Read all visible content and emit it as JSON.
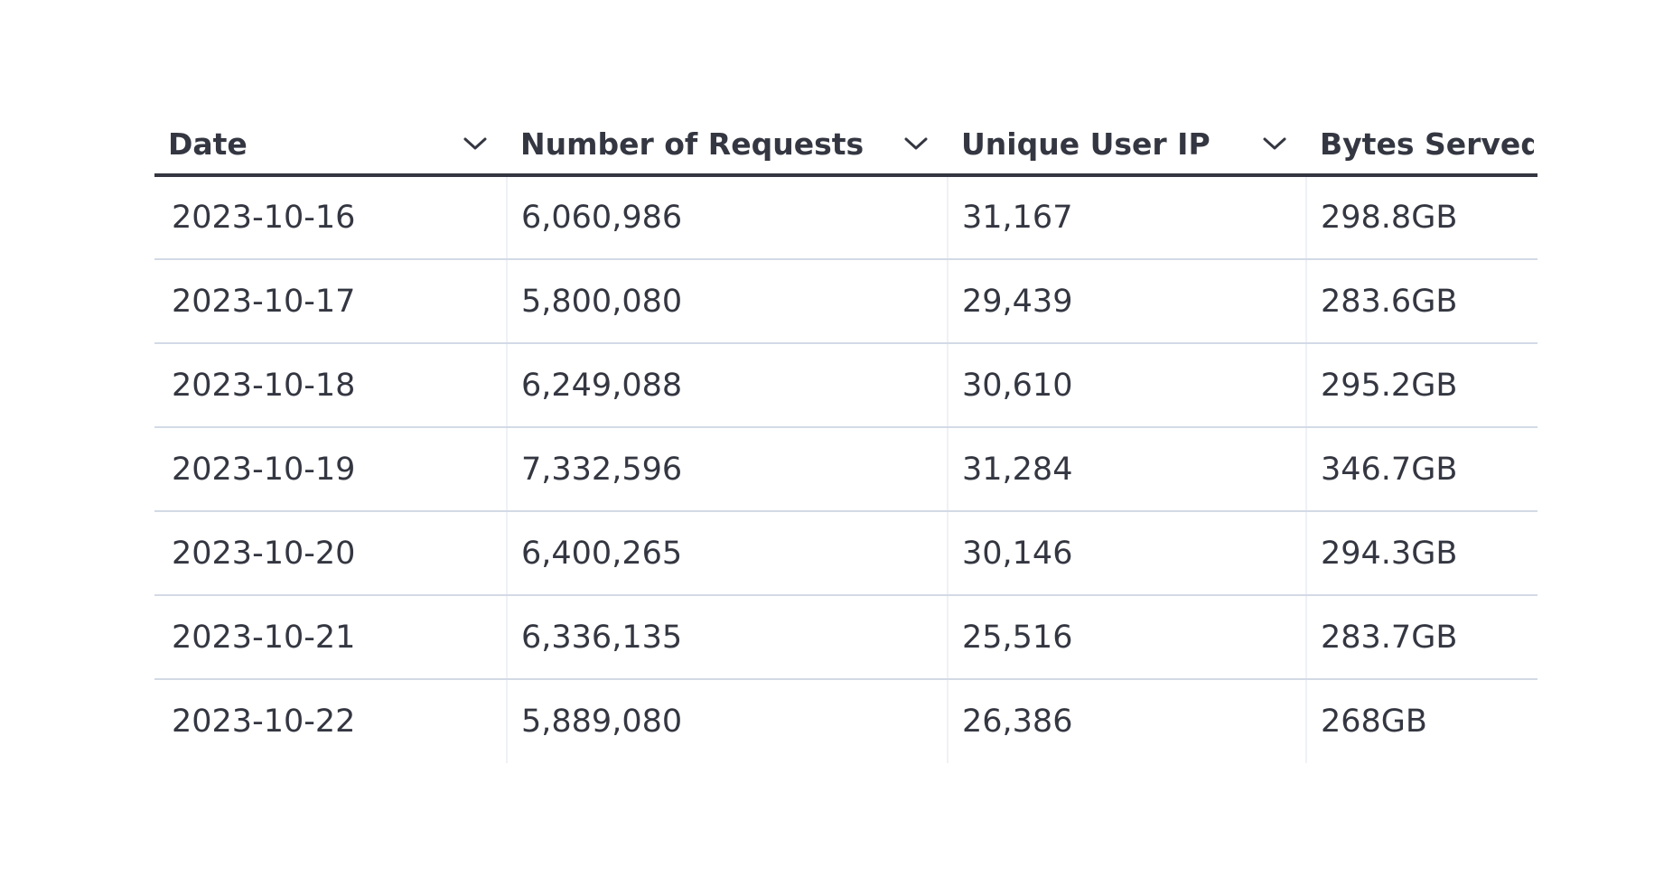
{
  "table": {
    "columns": [
      {
        "label": "Date",
        "sortable": true
      },
      {
        "label": "Number of Requests",
        "sortable": true
      },
      {
        "label": "Unique User IP",
        "sortable": true
      },
      {
        "label": "Bytes Served",
        "sortable": false
      }
    ],
    "rows": [
      [
        "2023-10-16",
        "6,060,986",
        "31,167",
        "298.8GB"
      ],
      [
        "2023-10-17",
        "5,800,080",
        "29,439",
        "283.6GB"
      ],
      [
        "2023-10-18",
        "6,249,088",
        "30,610",
        "295.2GB"
      ],
      [
        "2023-10-19",
        "7,332,596",
        "31,284",
        "346.7GB"
      ],
      [
        "2023-10-20",
        "6,400,265",
        "30,146",
        "294.3GB"
      ],
      [
        "2023-10-21",
        "6,336,135",
        "25,516",
        "283.7GB"
      ],
      [
        "2023-10-22",
        "5,889,080",
        "26,386",
        "268GB"
      ]
    ]
  },
  "colors": {
    "text": "#343741",
    "row_divider": "#d3dae6",
    "header_divider": "#343741"
  },
  "icons": {
    "sort": "chevron-down-icon"
  }
}
